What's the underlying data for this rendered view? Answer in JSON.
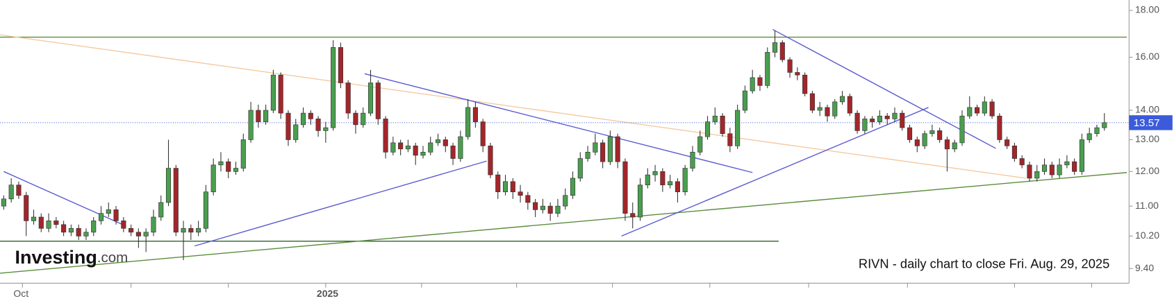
{
  "chart_data": {
    "type": "candlestick",
    "logo": {
      "main": "Investing",
      "suffix": ".com"
    },
    "annotation": "RIVN - daily chart to close Fri. Aug. 29, 2025",
    "log_scale": true,
    "up_color": "#4a9e4f",
    "down_color": "#a3262a",
    "last_price": 13.57,
    "last_price_color": "#3b5bdb",
    "xlim": [
      -0.5,
      150.3
    ],
    "xticks": [
      2.5,
      17,
      30,
      43,
      55.8,
      68.5,
      81.3,
      94.3,
      107.5,
      120.7,
      135,
      145.3
    ],
    "xtick_labels": [
      {
        "value": 2.5,
        "label": "Oct"
      },
      {
        "value": 43,
        "label": "2025"
      }
    ],
    "ylim": [
      9.06,
      18.48
    ],
    "yticks": [
      {
        "value": 9.4,
        "label": "9.40"
      },
      {
        "value": 10.2,
        "label": "10.20"
      },
      {
        "value": 11,
        "label": "11.00"
      },
      {
        "value": 12,
        "label": "12.00"
      },
      {
        "value": 13,
        "label": "13.00"
      },
      {
        "value": 14,
        "label": "14.00"
      },
      {
        "value": 16,
        "label": "16.00"
      },
      {
        "value": 18,
        "label": "18.00"
      }
    ],
    "candles": [
      [
        11.0,
        11.3,
        10.9,
        11.2
      ],
      [
        11.2,
        11.8,
        11.1,
        11.6
      ],
      [
        11.6,
        11.7,
        11.2,
        11.3
      ],
      [
        11.3,
        11.4,
        10.2,
        10.6
      ],
      [
        10.6,
        10.9,
        10.5,
        10.7
      ],
      [
        10.7,
        10.8,
        10.3,
        10.4
      ],
      [
        10.4,
        10.8,
        10.3,
        10.6
      ],
      [
        10.6,
        10.7,
        10.4,
        10.5
      ],
      [
        10.5,
        10.6,
        10.2,
        10.3
      ],
      [
        10.3,
        10.5,
        10.2,
        10.4
      ],
      [
        10.4,
        10.5,
        10.1,
        10.2
      ],
      [
        10.2,
        10.4,
        10.1,
        10.3
      ],
      [
        10.3,
        10.7,
        10.2,
        10.6
      ],
      [
        10.6,
        11.0,
        10.5,
        10.8
      ],
      [
        10.8,
        11.1,
        10.7,
        10.9
      ],
      [
        10.9,
        11.0,
        10.5,
        10.6
      ],
      [
        10.6,
        10.7,
        10.3,
        10.4
      ],
      [
        10.4,
        10.5,
        10.2,
        10.3
      ],
      [
        10.3,
        10.4,
        9.9,
        10.2
      ],
      [
        10.2,
        10.4,
        9.8,
        10.3
      ],
      [
        10.3,
        10.9,
        10.2,
        10.7
      ],
      [
        10.7,
        11.3,
        10.6,
        11.1
      ],
      [
        11.1,
        13.0,
        11.0,
        12.1
      ],
      [
        12.1,
        12.2,
        10.2,
        10.3
      ],
      [
        10.3,
        10.6,
        9.6,
        10.4
      ],
      [
        10.4,
        10.5,
        10.1,
        10.3
      ],
      [
        10.3,
        10.6,
        10.2,
        10.4
      ],
      [
        10.4,
        11.6,
        10.3,
        11.4
      ],
      [
        11.4,
        12.4,
        11.3,
        12.2
      ],
      [
        12.2,
        12.6,
        12.0,
        12.3
      ],
      [
        12.3,
        12.4,
        11.8,
        12.0
      ],
      [
        12.0,
        12.3,
        11.9,
        12.1
      ],
      [
        12.1,
        13.2,
        12.0,
        13.0
      ],
      [
        13.0,
        14.3,
        12.9,
        14.0
      ],
      [
        14.0,
        14.2,
        13.4,
        13.6
      ],
      [
        13.6,
        14.2,
        13.5,
        14.0
      ],
      [
        14.0,
        15.5,
        13.9,
        15.3
      ],
      [
        15.3,
        15.4,
        13.7,
        13.9
      ],
      [
        13.9,
        14.0,
        12.8,
        13.0
      ],
      [
        13.0,
        13.7,
        12.9,
        13.5
      ],
      [
        13.5,
        14.1,
        13.4,
        13.9
      ],
      [
        13.9,
        14.0,
        13.5,
        13.7
      ],
      [
        13.7,
        13.8,
        13.1,
        13.3
      ],
      [
        13.3,
        13.6,
        12.9,
        13.4
      ],
      [
        13.4,
        16.7,
        13.3,
        16.4
      ],
      [
        16.4,
        16.6,
        14.8,
        15.0
      ],
      [
        15.0,
        15.1,
        13.7,
        13.9
      ],
      [
        13.9,
        14.0,
        13.2,
        13.5
      ],
      [
        13.5,
        14.1,
        13.4,
        13.9
      ],
      [
        13.9,
        15.5,
        13.8,
        15.0
      ],
      [
        15.0,
        15.1,
        13.5,
        13.7
      ],
      [
        13.7,
        13.8,
        12.4,
        12.6
      ],
      [
        12.6,
        13.1,
        12.5,
        12.9
      ],
      [
        12.9,
        13.0,
        12.5,
        12.7
      ],
      [
        12.7,
        13.0,
        12.6,
        12.8
      ],
      [
        12.8,
        12.9,
        12.2,
        12.5
      ],
      [
        12.5,
        12.8,
        12.4,
        12.6
      ],
      [
        12.6,
        13.1,
        12.5,
        12.9
      ],
      [
        12.9,
        13.2,
        12.8,
        13.0
      ],
      [
        13.0,
        13.1,
        12.6,
        12.8
      ],
      [
        12.8,
        12.9,
        12.2,
        12.4
      ],
      [
        12.4,
        13.3,
        12.3,
        13.1
      ],
      [
        13.1,
        14.4,
        13.0,
        14.1
      ],
      [
        14.1,
        14.3,
        13.4,
        13.6
      ],
      [
        13.6,
        13.7,
        12.6,
        12.8
      ],
      [
        12.8,
        12.9,
        11.8,
        11.9
      ],
      [
        11.9,
        12.0,
        11.2,
        11.4
      ],
      [
        11.4,
        11.9,
        11.3,
        11.7
      ],
      [
        11.7,
        11.8,
        11.2,
        11.4
      ],
      [
        11.4,
        11.6,
        11.1,
        11.3
      ],
      [
        11.3,
        11.4,
        10.9,
        11.1
      ],
      [
        11.1,
        11.2,
        10.7,
        10.9
      ],
      [
        10.9,
        11.2,
        10.8,
        11.0
      ],
      [
        11.0,
        11.1,
        10.6,
        10.8
      ],
      [
        10.8,
        11.2,
        10.7,
        11.0
      ],
      [
        11.0,
        11.5,
        10.9,
        11.3
      ],
      [
        11.3,
        12.0,
        11.2,
        11.8
      ],
      [
        11.8,
        12.6,
        11.7,
        12.4
      ],
      [
        12.4,
        12.8,
        12.3,
        12.6
      ],
      [
        12.6,
        13.2,
        12.5,
        12.9
      ],
      [
        12.9,
        13.0,
        12.1,
        12.3
      ],
      [
        12.3,
        13.3,
        12.2,
        13.1
      ],
      [
        13.1,
        13.2,
        12.1,
        12.3
      ],
      [
        12.3,
        12.4,
        10.6,
        10.8
      ],
      [
        10.8,
        11.1,
        10.4,
        10.7
      ],
      [
        10.7,
        11.8,
        10.6,
        11.6
      ],
      [
        11.6,
        12.1,
        11.5,
        11.9
      ],
      [
        11.9,
        12.2,
        11.7,
        12.0
      ],
      [
        12.0,
        12.1,
        11.4,
        11.6
      ],
      [
        11.6,
        11.9,
        11.5,
        11.7
      ],
      [
        11.7,
        11.8,
        11.1,
        11.4
      ],
      [
        11.4,
        12.2,
        11.3,
        12.1
      ],
      [
        12.1,
        12.8,
        12.0,
        12.6
      ],
      [
        12.6,
        13.3,
        12.5,
        13.1
      ],
      [
        13.1,
        13.8,
        13.0,
        13.6
      ],
      [
        13.6,
        14.1,
        13.5,
        13.8
      ],
      [
        13.8,
        13.9,
        13.1,
        13.2
      ],
      [
        13.2,
        13.4,
        12.6,
        12.8
      ],
      [
        12.8,
        14.2,
        12.7,
        14.0
      ],
      [
        14.0,
        14.9,
        13.9,
        14.7
      ],
      [
        14.7,
        15.5,
        14.6,
        15.2
      ],
      [
        15.2,
        15.3,
        14.7,
        14.9
      ],
      [
        14.9,
        16.4,
        14.8,
        16.2
      ],
      [
        16.2,
        17.1,
        16.0,
        16.6
      ],
      [
        16.6,
        16.7,
        15.8,
        15.9
      ],
      [
        15.9,
        16.0,
        15.2,
        15.4
      ],
      [
        15.4,
        15.6,
        15.1,
        15.3
      ],
      [
        15.3,
        15.4,
        14.5,
        14.6
      ],
      [
        14.6,
        14.7,
        13.9,
        14.0
      ],
      [
        14.0,
        14.3,
        13.8,
        14.1
      ],
      [
        14.1,
        14.2,
        13.6,
        13.8
      ],
      [
        13.8,
        14.4,
        13.7,
        14.3
      ],
      [
        14.3,
        14.7,
        14.2,
        14.5
      ],
      [
        14.5,
        14.6,
        13.8,
        13.9
      ],
      [
        13.9,
        14.0,
        13.2,
        13.3
      ],
      [
        13.3,
        13.8,
        13.2,
        13.7
      ],
      [
        13.7,
        13.8,
        13.4,
        13.6
      ],
      [
        13.6,
        14.0,
        13.5,
        13.8
      ],
      [
        13.8,
        13.9,
        13.5,
        13.7
      ],
      [
        13.7,
        14.1,
        13.6,
        13.9
      ],
      [
        13.9,
        14.0,
        13.3,
        13.4
      ],
      [
        13.4,
        13.5,
        12.9,
        13.0
      ],
      [
        13.0,
        13.1,
        12.6,
        12.8
      ],
      [
        12.8,
        13.3,
        12.7,
        13.2
      ],
      [
        13.2,
        13.5,
        13.1,
        13.3
      ],
      [
        13.3,
        13.4,
        12.9,
        13.0
      ],
      [
        13.0,
        13.1,
        12.0,
        12.7
      ],
      [
        12.7,
        13.0,
        12.6,
        12.9
      ],
      [
        12.9,
        14.0,
        12.8,
        13.8
      ],
      [
        13.8,
        14.5,
        13.7,
        14.1
      ],
      [
        14.1,
        14.2,
        13.8,
        13.9
      ],
      [
        13.9,
        14.5,
        13.8,
        14.3
      ],
      [
        14.3,
        14.4,
        13.7,
        13.8
      ],
      [
        13.8,
        13.9,
        12.9,
        13.0
      ],
      [
        13.0,
        13.1,
        12.7,
        12.8
      ],
      [
        12.8,
        12.9,
        12.3,
        12.4
      ],
      [
        12.4,
        12.5,
        12.1,
        12.2
      ],
      [
        12.2,
        12.3,
        11.7,
        11.8
      ],
      [
        11.8,
        12.2,
        11.7,
        12.0
      ],
      [
        12.0,
        12.4,
        11.9,
        12.2
      ],
      [
        12.2,
        12.3,
        11.8,
        11.9
      ],
      [
        11.9,
        12.4,
        11.8,
        12.2
      ],
      [
        12.2,
        12.5,
        12.1,
        12.3
      ],
      [
        12.3,
        12.4,
        11.9,
        12.0
      ],
      [
        12.0,
        13.2,
        11.9,
        13.0
      ],
      [
        13.0,
        13.4,
        12.9,
        13.2
      ],
      [
        13.2,
        13.5,
        13.1,
        13.4
      ],
      [
        13.4,
        13.9,
        13.3,
        13.57
      ]
    ],
    "lines": [
      {
        "x": [
          -0.5,
          150.0
        ],
        "y": [
          16.83,
          16.83
        ],
        "color": "#5b8c3a"
      },
      {
        "x": [
          -0.5,
          103.5
        ],
        "y": [
          10.07,
          10.07
        ],
        "color": "#3f6e3a"
      },
      {
        "x": [
          -0.5,
          150.0
        ],
        "y": [
          9.29,
          11.97
        ],
        "color": "#5b8c3a"
      },
      {
        "x": [
          -0.5,
          136.5
        ],
        "y": [
          16.93,
          11.8
        ],
        "color": "#f5c9a0"
      },
      {
        "x": [
          0,
          16
        ],
        "y": [
          12.0,
          10.49
        ],
        "color": "#5a5ad0"
      },
      {
        "x": [
          25.5,
          64.5
        ],
        "y": [
          9.95,
          12.32
        ],
        "color": "#5a5ad0"
      },
      {
        "x": [
          48.2,
          100
        ],
        "y": [
          15.35,
          11.97
        ],
        "color": "#5a5ad0"
      },
      {
        "x": [
          82.5,
          123.5
        ],
        "y": [
          10.2,
          14.1
        ],
        "color": "#5a5ad0"
      },
      {
        "x": [
          102.7,
          132.5
        ],
        "y": [
          17.16,
          12.72
        ],
        "color": "#5a5ad0"
      }
    ]
  }
}
